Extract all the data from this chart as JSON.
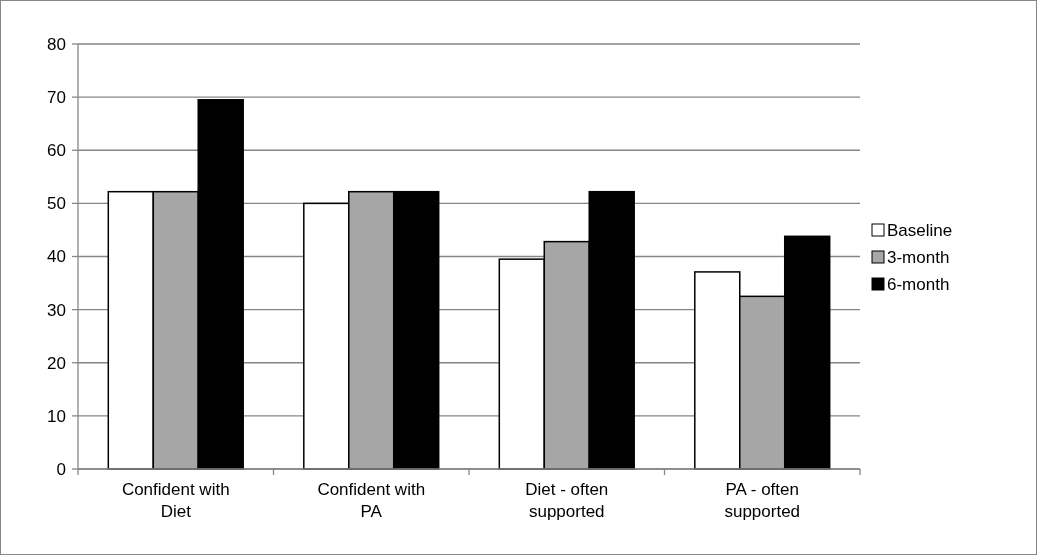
{
  "chart_data": {
    "type": "bar",
    "categories": [
      "Confident with Diet",
      "Confident with PA",
      "Diet - often supported",
      "PA - often supported"
    ],
    "series": [
      {
        "name": "Baseline",
        "color": "#ffffff",
        "values": [
          52.2,
          50.0,
          39.5,
          37.1
        ]
      },
      {
        "name": "3-month",
        "color": "#a6a6a6",
        "values": [
          52.2,
          52.2,
          42.8,
          32.5
        ]
      },
      {
        "name": "6-month",
        "color": "#000000",
        "values": [
          69.5,
          52.2,
          52.2,
          43.8
        ]
      }
    ],
    "ylim": [
      0,
      80
    ],
    "yticks": [
      0,
      10,
      20,
      30,
      40,
      50,
      60,
      70,
      80
    ],
    "grid": "y",
    "legend": "right"
  }
}
